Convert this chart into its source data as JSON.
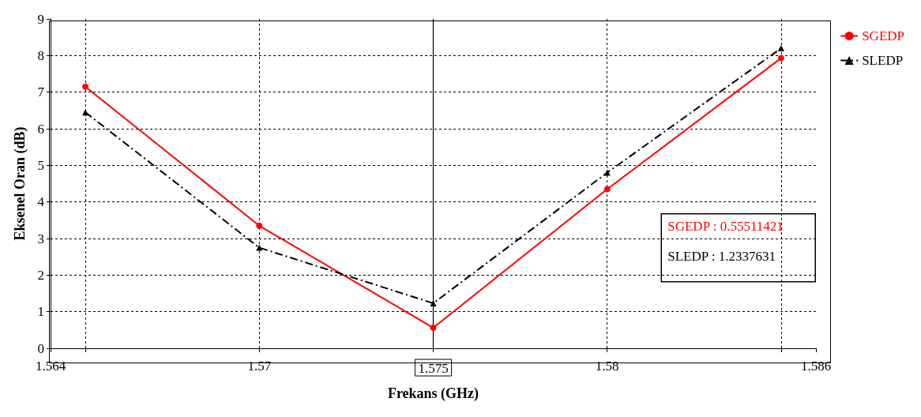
{
  "chart_data": {
    "type": "line",
    "xlabel": "Frekans (GHz)",
    "ylabel": "Eksenel Oran (dB)",
    "x": [
      1.565,
      1.57,
      1.575,
      1.58,
      1.585
    ],
    "series": [
      {
        "name": "SGEDP",
        "color": "#ff0000",
        "marker": "circle",
        "line_style": "solid",
        "values": [
          7.15,
          3.35,
          0.56,
          4.35,
          7.93
        ]
      },
      {
        "name": "SLEDP",
        "color": "#000000",
        "marker": "triangle",
        "line_style": "dashed",
        "values": [
          6.45,
          2.75,
          1.23,
          4.8,
          8.2
        ]
      }
    ],
    "xlim": [
      1.564,
      1.586
    ],
    "xticks": [
      1.564,
      {
        "value": 1.565,
        "label": null
      },
      1.57,
      1.575,
      1.58,
      {
        "value": 1.585,
        "label": null
      },
      1.586
    ],
    "ylim": [
      0,
      9
    ],
    "yticks": [
      0,
      1,
      2,
      3,
      4,
      5,
      6,
      7,
      8,
      9
    ],
    "ref_lines": [
      {
        "axis": "x",
        "value": 1.575,
        "label": null,
        "color": "#000000",
        "line_style": "solid"
      }
    ],
    "annotations": [
      "SGEDP : 0.55511421",
      "SLEDP : 1.2337631"
    ],
    "grid": true,
    "legend": "top right"
  }
}
